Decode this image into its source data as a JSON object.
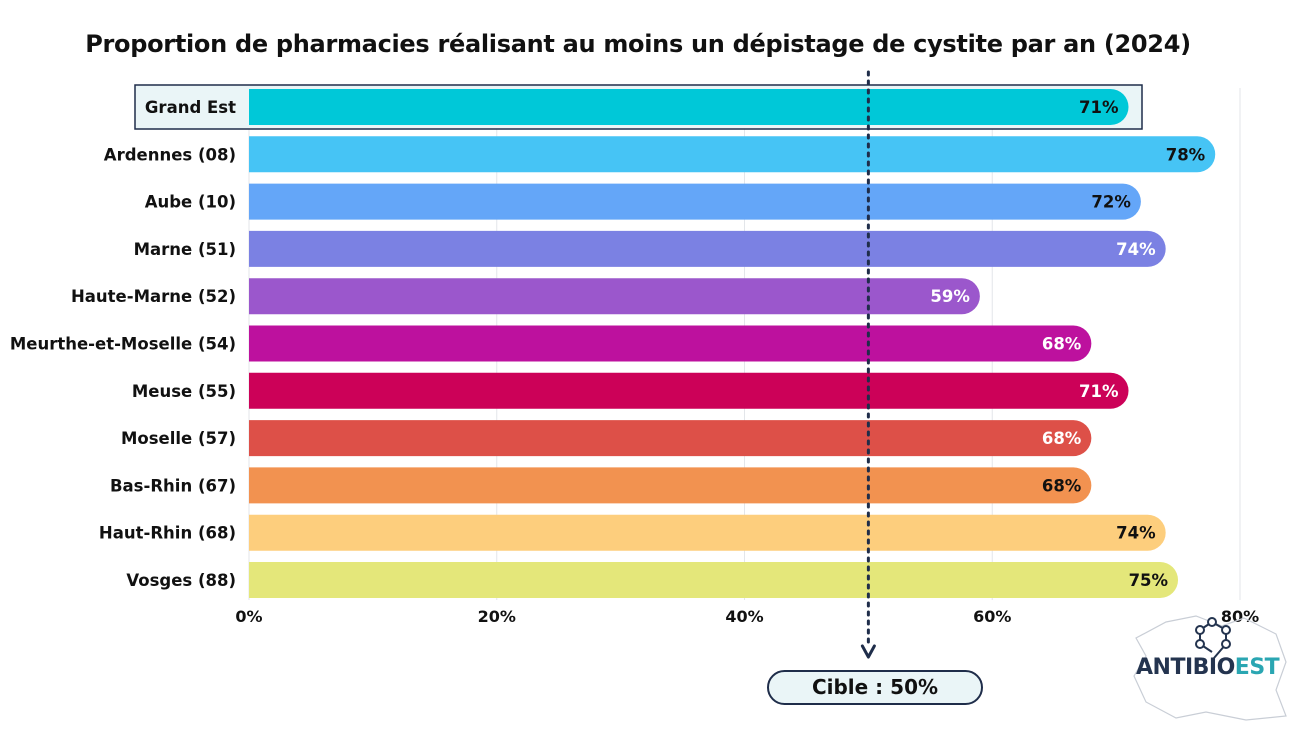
{
  "chart_data": {
    "type": "bar",
    "orientation": "horizontal",
    "title": "Proportion de pharmacies réalisant au moins un dépistage de cystite par an (2024)",
    "categories": [
      "Grand Est",
      "Ardennes (08)",
      "Aube (10)",
      "Marne (51)",
      "Haute-Marne (52)",
      "Meurthe-et-Moselle (54)",
      "Meuse (55)",
      "Moselle (57)",
      "Bas-Rhin (67)",
      "Haut-Rhin (68)",
      "Vosges (88)"
    ],
    "values": [
      71,
      78,
      72,
      74,
      59,
      68,
      71,
      68,
      68,
      74,
      75
    ],
    "value_labels": [
      "71%",
      "78%",
      "72%",
      "74%",
      "59%",
      "68%",
      "71%",
      "68%",
      "68%",
      "74%",
      "75%"
    ],
    "colors": [
      "#00c8d8",
      "#46c4f5",
      "#64a6f8",
      "#7b81e3",
      "#9b57cc",
      "#bd119e",
      "#cc0158",
      "#dd5048",
      "#f29250",
      "#fdce7d",
      "#e4e77a"
    ],
    "label_colors": [
      "#111111",
      "#111111",
      "#111111",
      "#ffffff",
      "#ffffff",
      "#ffffff",
      "#ffffff",
      "#ffffff",
      "#111111",
      "#111111",
      "#111111"
    ],
    "highlighted_category": "Grand Est",
    "x_ticks": [
      0,
      20,
      40,
      60,
      80
    ],
    "x_tick_labels": [
      "0%",
      "20%",
      "40%",
      "60%",
      "80%"
    ],
    "xlim": [
      0,
      80
    ],
    "grid": "vertical",
    "target": {
      "value": 50,
      "label": "Cible : 50%"
    }
  },
  "logo": {
    "text_main": "ANTIBIO",
    "text_accent": "EST"
  }
}
